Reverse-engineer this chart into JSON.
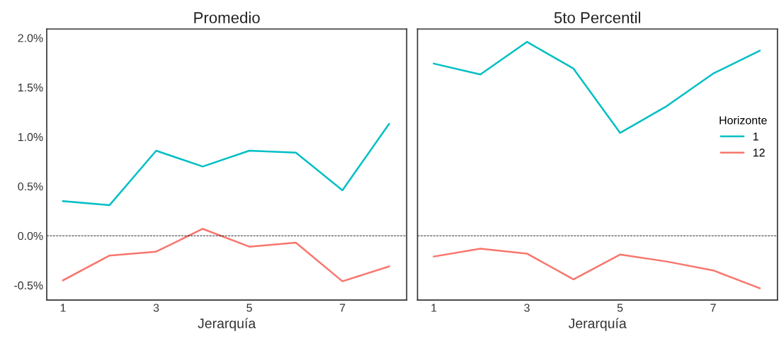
{
  "chart_data": [
    {
      "type": "line",
      "title": "Promedio",
      "xlabel": "Jerarquía",
      "x": [
        1,
        2,
        3,
        4,
        5,
        6,
        7,
        8
      ],
      "series": [
        {
          "color": "#00bfc4",
          "values": [
            0.35,
            0.31,
            0.86,
            0.7,
            0.86,
            0.84,
            0.46,
            1.13
          ]
        },
        {
          "color": "#f8766d",
          "values": [
            -0.45,
            -0.2,
            -0.16,
            0.07,
            -0.11,
            -0.07,
            -0.46,
            -0.31
          ]
        }
      ],
      "xlim": [
        0.65,
        8.38
      ],
      "xticks": [
        1,
        3,
        5,
        7
      ],
      "ylim": [
        -0.65,
        2.09
      ],
      "yticks": [
        {
          "value": -0.5,
          "label": "-0.5%"
        },
        {
          "value": 0,
          "label": "0.0%"
        },
        {
          "value": 0.5,
          "label": "0.5%"
        },
        {
          "value": 1.0,
          "label": "1.0%"
        },
        {
          "value": 1.5,
          "label": "1.5%"
        },
        {
          "value": 2.0,
          "label": "2.0%"
        }
      ],
      "ref_lines": [
        {
          "axis": "y",
          "value": 0,
          "color": "#000000",
          "line_style": "dashed"
        }
      ],
      "grid": false,
      "legend": false
    },
    {
      "type": "line",
      "title": "5to Percentil",
      "xlabel": "Jerarquía",
      "x": [
        1,
        2,
        3,
        4,
        5,
        6,
        7,
        8
      ],
      "legend_title": "Horizonte",
      "series": [
        {
          "name": "1",
          "color": "#00bfc4",
          "values": [
            1.74,
            1.63,
            1.96,
            1.69,
            1.04,
            1.31,
            1.64,
            1.87
          ]
        },
        {
          "name": "12",
          "color": "#f8766d",
          "values": [
            -0.21,
            -0.13,
            -0.18,
            -0.44,
            -0.19,
            -0.26,
            -0.35,
            -0.53
          ]
        }
      ],
      "xlim": [
        0.65,
        8.38
      ],
      "xticks": [
        1,
        3,
        5,
        7
      ],
      "ylim": [
        -0.65,
        2.09
      ],
      "tick_labels": "x",
      "ref_lines": [
        {
          "axis": "y",
          "value": 0,
          "color": "#000000",
          "line_style": "dashed"
        }
      ],
      "grid": false,
      "legend": "right"
    }
  ]
}
